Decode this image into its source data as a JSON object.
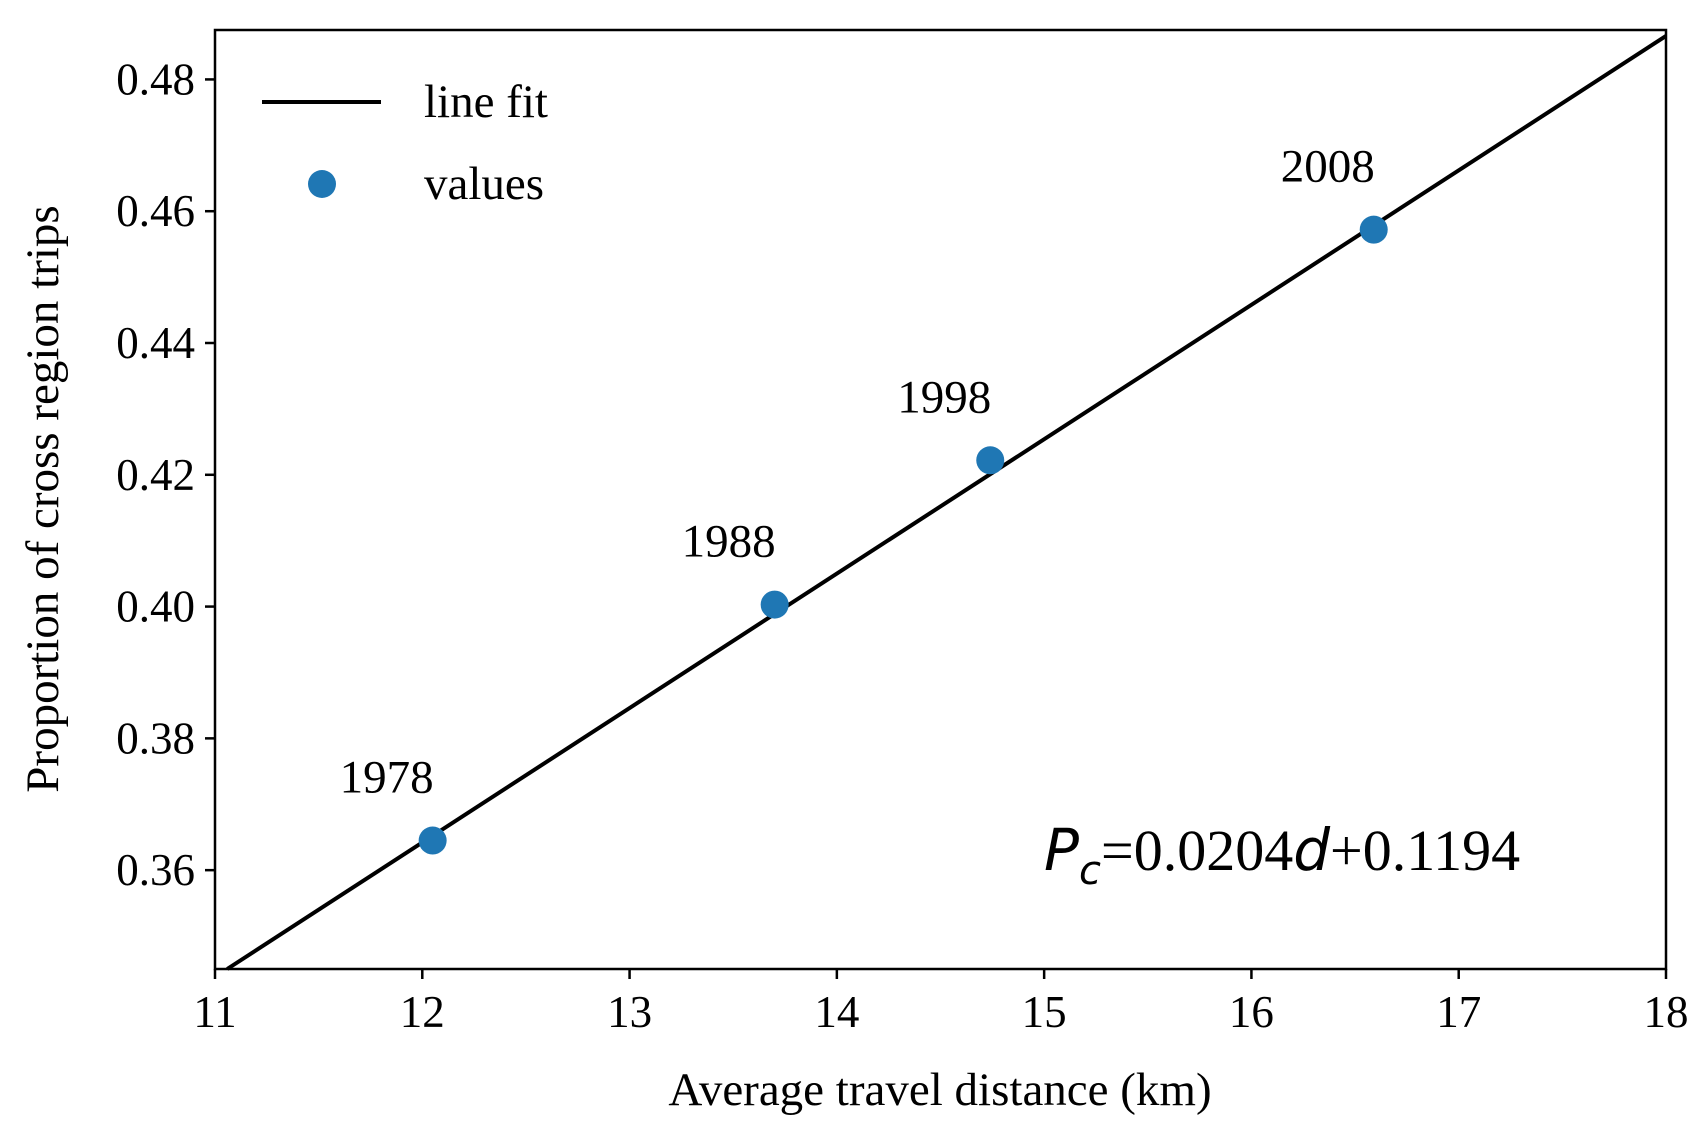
{
  "chart_data": {
    "type": "scatter",
    "xlabel": "Average travel distance (km)",
    "ylabel": "Proportion of cross region trips",
    "xlim": [
      11,
      18
    ],
    "ylim": [
      0.345,
      0.4875
    ],
    "x_ticks": [
      "11",
      "12",
      "13",
      "14",
      "15",
      "16",
      "17",
      "18"
    ],
    "y_ticks": [
      "0.36",
      "0.38",
      "0.40",
      "0.42",
      "0.44",
      "0.46",
      "0.48"
    ],
    "x_tick_values": [
      11,
      12,
      13,
      14,
      15,
      16,
      17,
      18
    ],
    "y_tick_values": [
      0.36,
      0.38,
      0.4,
      0.42,
      0.44,
      0.46,
      0.48
    ],
    "series": [
      {
        "name": "values",
        "marker": "circle",
        "color": "#1f77b4",
        "points": [
          {
            "x": 12.05,
            "y": 0.3645,
            "label": "1978"
          },
          {
            "x": 13.7,
            "y": 0.4003,
            "label": "1988"
          },
          {
            "x": 14.74,
            "y": 0.4222,
            "label": "1998"
          },
          {
            "x": 16.59,
            "y": 0.4572,
            "label": "2008"
          }
        ]
      },
      {
        "name": "line fit",
        "type": "line",
        "color": "#000000",
        "slope": 0.0204,
        "intercept": 0.1194
      }
    ],
    "legend": {
      "position": "top-left",
      "entries": [
        {
          "label": "line fit",
          "kind": "line"
        },
        {
          "label": "values",
          "kind": "marker"
        }
      ]
    },
    "equation": {
      "p_symbol": "P",
      "p_subscript": "c",
      "eq_part1": "=0.0204",
      "d_symbol": "d",
      "eq_part2": "+0.1194"
    },
    "grid": false
  }
}
